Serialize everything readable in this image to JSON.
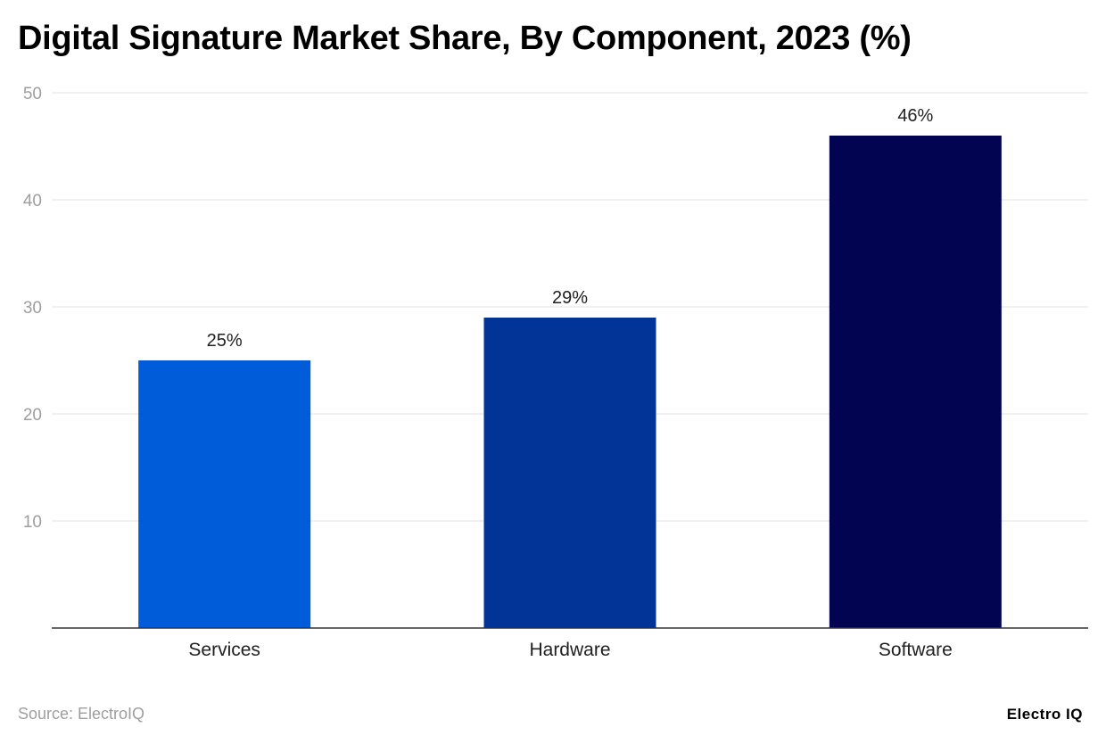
{
  "title": "Digital Signature Market Share, By Component, 2023 (%)",
  "source": "Source: ElectroIQ",
  "logo": "Electro IQ",
  "chart_data": {
    "type": "bar",
    "title": "Digital Signature Market Share, By Component, 2023 (%)",
    "categories": [
      "Services",
      "Hardware",
      "Software"
    ],
    "values": [
      25,
      29,
      46
    ],
    "data_labels": [
      "25%",
      "29%",
      "46%"
    ],
    "colors": [
      "#015cda",
      "#023397",
      "#020452"
    ],
    "xlabel": "",
    "ylabel": "",
    "ylim": [
      0,
      50
    ],
    "yticks": [
      10,
      20,
      30,
      40,
      50
    ],
    "grid": true,
    "legend": "none"
  }
}
